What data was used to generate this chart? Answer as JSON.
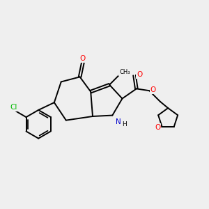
{
  "background_color": "#efefef",
  "fig_size": [
    3.0,
    3.0
  ],
  "dpi": 100,
  "atom_colors": {
    "C": "#000000",
    "N": "#0000cc",
    "O": "#ff0000",
    "Cl": "#00bb00",
    "H": "#000000"
  },
  "bond_color": "#000000",
  "bond_width": 1.4,
  "font_size_atom": 7.5,
  "xlim": [
    -3.5,
    7.0
  ],
  "ylim": [
    -4.0,
    4.5
  ]
}
